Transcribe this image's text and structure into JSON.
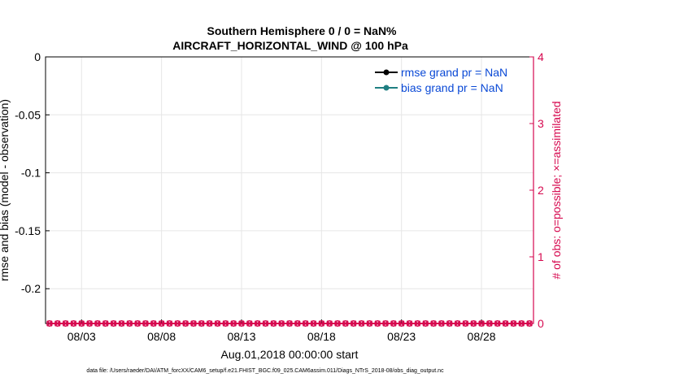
{
  "chart_data": {
    "type": "line",
    "title": "Southern Hemisphere 0 / 0 = NaN%",
    "subtitle": "AIRCRAFT_HORIZONTAL_WIND @ 100 hPa",
    "xlabel": "Aug.01,2018 00:00:00 start",
    "ylabel_left": "rmse and bias (model - observation)",
    "ylabel_right": "# of obs: o=possible; ×=assimilated",
    "x_ticks": [
      "08/03",
      "08/08",
      "08/13",
      "08/18",
      "08/23",
      "08/28"
    ],
    "x_tick_days": [
      3,
      8,
      13,
      18,
      23,
      28
    ],
    "xlim_days": [
      0.75,
      31.25
    ],
    "y_left_ticks": [
      "0",
      "-0.05",
      "-0.1",
      "-0.15",
      "-0.2"
    ],
    "y_left_tick_values": [
      0,
      -0.05,
      -0.1,
      -0.15,
      -0.2
    ],
    "ylim_left": [
      -0.23,
      0
    ],
    "y_right_ticks": [
      "0",
      "1",
      "2",
      "3",
      "4"
    ],
    "y_right_tick_values": [
      0,
      1,
      2,
      3,
      4
    ],
    "ylim_right": [
      0,
      4
    ],
    "grid": true,
    "legend_position": "top-right",
    "series": [
      {
        "name": "rmse grand pr = NaN",
        "color": "#000000",
        "marker": "dot",
        "values": []
      },
      {
        "name": "bias grand pr = NaN",
        "color": "#1f7f82",
        "marker": "dot",
        "values": []
      },
      {
        "color": "#d6094f",
        "marker": "o",
        "axis": "right",
        "x_start_day": 1,
        "x_end_day": 31,
        "count": 61,
        "value": 0
      },
      {
        "color": "#d6094f",
        "marker": "x",
        "axis": "right",
        "x_start_day": 1,
        "x_end_day": 31,
        "count": 61,
        "value": 0
      }
    ],
    "colors": {
      "obs_axis": "#d6094f",
      "legend_text": "#0a49d6",
      "grid": "#e6e6e6"
    }
  },
  "footer": "data file: /Users/raeder/DAI/ATM_forcXX/CAM6_setup/f.e21.FHIST_BGC.f09_025.CAM6assim.011/Diags_NTrS_2018-08/obs_diag_output.nc"
}
